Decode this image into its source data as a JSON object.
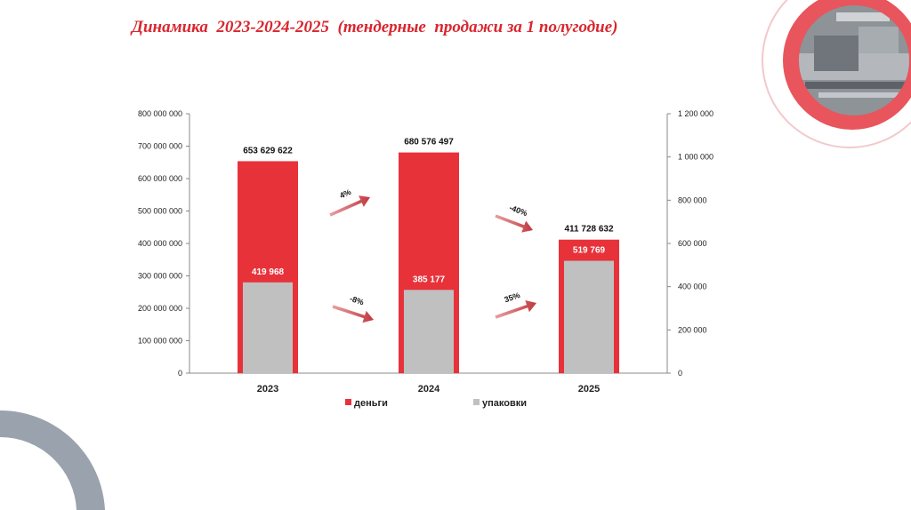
{
  "slide": {
    "title": "Динамика  2023-2024-2025  (тендерные  продажи за 1 полугодие)"
  },
  "colors": {
    "money": "#e8323a",
    "packages": "#c0c0c0",
    "title": "#d9262e",
    "arrow": "#c0393e",
    "decor_grey": "#9aa3ad"
  },
  "chart_data": {
    "type": "bar",
    "categories": [
      "2023",
      "2024",
      "2025"
    ],
    "series": [
      {
        "name": "деньги",
        "axis": "left",
        "values": [
          653629622,
          680576497,
          411728632
        ],
        "labels": [
          "653 629 622",
          "680 576 497",
          "411 728 632"
        ]
      },
      {
        "name": "упаковки",
        "axis": "right",
        "values": [
          419968,
          385177,
          519769
        ],
        "labels": [
          "419 968",
          "385 177",
          "519 769"
        ]
      }
    ],
    "y_left": {
      "range": [
        0,
        800000000
      ],
      "ticks": [
        "0",
        "100 000 000",
        "200 000 000",
        "300 000 000",
        "400 000 000",
        "500 000 000",
        "600 000 000",
        "700 000 000",
        "800 000 000"
      ]
    },
    "y_right": {
      "range": [
        0,
        1200000
      ],
      "ticks": [
        "0",
        "200 000",
        "400 000",
        "600 000",
        "800 000",
        "1 000 000",
        "1 200 000"
      ]
    },
    "annotations": [
      {
        "text": "4%",
        "series": "деньги",
        "between": [
          "2023",
          "2024"
        ]
      },
      {
        "text": "-40%",
        "series": "деньги",
        "between": [
          "2024",
          "2025"
        ]
      },
      {
        "text": "-8%",
        "series": "упаковки",
        "between": [
          "2023",
          "2024"
        ]
      },
      {
        "text": "35%",
        "series": "упаковки",
        "between": [
          "2024",
          "2025"
        ]
      }
    ],
    "legend": {
      "position": "bottom",
      "items": [
        "деньги",
        "упаковки"
      ]
    },
    "grid": false
  }
}
